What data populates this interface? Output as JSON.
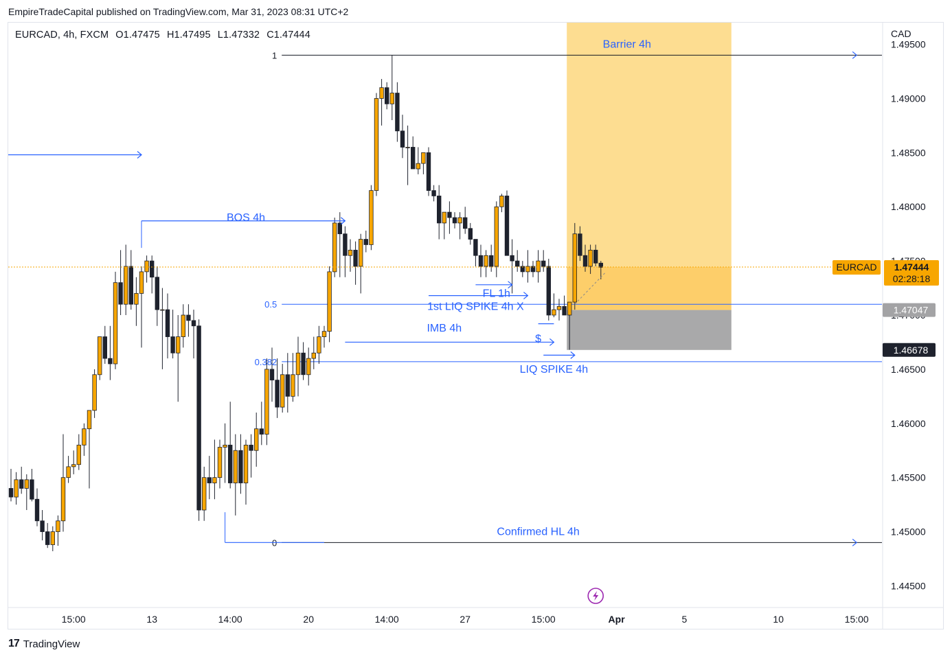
{
  "header": {
    "published": "EmpireTradeCapital published on TradingView.com, Mar 31, 2023 08:31 UTC+2"
  },
  "legend": {
    "symbol": "EURCAD, 4h, FXCM",
    "open": "O1.47475",
    "high": "H1.47495",
    "low": "L1.47332",
    "close": "C1.47444"
  },
  "footer": {
    "brand": "TradingView",
    "logo": "17"
  },
  "colors": {
    "up": "#f7a600",
    "down": "#1e222d",
    "blue": "#2962ff",
    "zone_orange": "#fdd77e",
    "zone_gray": "#a9a9aa",
    "label_orange": "#f7a600"
  },
  "chart_data": {
    "type": "candlestick",
    "currency": "CAD",
    "ylim": [
      1.443,
      1.497
    ],
    "y_ticks": [
      "1.49500",
      "1.49000",
      "1.48500",
      "1.48000",
      "1.47500",
      "1.47000",
      "1.46500",
      "1.46000",
      "1.45500",
      "1.45000",
      "1.44500"
    ],
    "x_ticks": [
      {
        "label": "15:00",
        "bar": 12,
        "bold": false
      },
      {
        "label": "13",
        "bar": 27,
        "bold": false
      },
      {
        "label": "14:00",
        "bar": 42,
        "bold": false
      },
      {
        "label": "20",
        "bar": 57,
        "bold": false
      },
      {
        "label": "14:00",
        "bar": 72,
        "bold": false
      },
      {
        "label": "27",
        "bar": 87,
        "bold": false
      },
      {
        "label": "15:00",
        "bar": 102,
        "bold": false
      },
      {
        "label": "Apr",
        "bar": 116,
        "bold": true
      },
      {
        "label": "5",
        "bar": 129,
        "bold": false
      },
      {
        "label": "10",
        "bar": 147,
        "bold": false
      },
      {
        "label": "15:00",
        "bar": 162,
        "bold": false
      }
    ],
    "candles": [
      [
        1.454,
        1.4558,
        1.4528,
        1.4532
      ],
      [
        1.4532,
        1.4555,
        1.4525,
        1.4548
      ],
      [
        1.4548,
        1.456,
        1.4535,
        1.454
      ],
      [
        1.454,
        1.4553,
        1.452,
        1.4548
      ],
      [
        1.4548,
        1.4558,
        1.4528,
        1.453
      ],
      [
        1.453,
        1.454,
        1.4505,
        1.451
      ],
      [
        1.451,
        1.452,
        1.4492,
        1.45
      ],
      [
        1.45,
        1.4508,
        1.4485,
        1.4488
      ],
      [
        1.4488,
        1.4505,
        1.4482,
        1.45
      ],
      [
        1.45,
        1.4515,
        1.4487,
        1.451
      ],
      [
        1.451,
        1.459,
        1.45,
        1.455
      ],
      [
        1.455,
        1.457,
        1.4545,
        1.456
      ],
      [
        1.456,
        1.4575,
        1.4553,
        1.4562
      ],
      [
        1.4562,
        1.459,
        1.4557,
        1.458
      ],
      [
        1.458,
        1.46,
        1.457,
        1.4595
      ],
      [
        1.4595,
        1.461,
        1.454,
        1.4612
      ],
      [
        1.4612,
        1.465,
        1.4605,
        1.4645
      ],
      [
        1.4645,
        1.468,
        1.464,
        1.468
      ],
      [
        1.468,
        1.469,
        1.4655,
        1.466
      ],
      [
        1.466,
        1.469,
        1.464,
        1.4655
      ],
      [
        1.4655,
        1.474,
        1.465,
        1.473
      ],
      [
        1.473,
        1.476,
        1.47,
        1.471
      ],
      [
        1.471,
        1.4765,
        1.47,
        1.4745
      ],
      [
        1.4745,
        1.476,
        1.4705,
        1.471
      ],
      [
        1.471,
        1.4735,
        1.469,
        1.472
      ],
      [
        1.472,
        1.4745,
        1.467,
        1.474
      ],
      [
        1.474,
        1.4755,
        1.473,
        1.475
      ],
      [
        1.475,
        1.4755,
        1.472,
        1.4735
      ],
      [
        1.4735,
        1.4745,
        1.469,
        1.4705
      ],
      [
        1.4705,
        1.4725,
        1.465,
        1.4705
      ],
      [
        1.4705,
        1.472,
        1.466,
        1.468
      ],
      [
        1.468,
        1.4705,
        1.466,
        1.4665
      ],
      [
        1.4665,
        1.47,
        1.462,
        1.468
      ],
      [
        1.468,
        1.471,
        1.467,
        1.47
      ],
      [
        1.47,
        1.471,
        1.468,
        1.4695
      ],
      [
        1.4695,
        1.4705,
        1.466,
        1.469
      ],
      [
        1.469,
        1.4696,
        1.451,
        1.452
      ],
      [
        1.452,
        1.456,
        1.451,
        1.455
      ],
      [
        1.455,
        1.457,
        1.453,
        1.4545
      ],
      [
        1.4545,
        1.4585,
        1.453,
        1.455
      ],
      [
        1.455,
        1.4585,
        1.454,
        1.4578
      ],
      [
        1.4578,
        1.46,
        1.4545,
        1.458
      ],
      [
        1.458,
        1.462,
        1.454,
        1.4545
      ],
      [
        1.4545,
        1.459,
        1.4515,
        1.4575
      ],
      [
        1.4575,
        1.459,
        1.4535,
        1.4545
      ],
      [
        1.4545,
        1.4585,
        1.4525,
        1.458
      ],
      [
        1.458,
        1.459,
        1.455,
        1.4575
      ],
      [
        1.4575,
        1.461,
        1.456,
        1.4595
      ],
      [
        1.4595,
        1.462,
        1.458,
        1.459
      ],
      [
        1.459,
        1.466,
        1.458,
        1.465
      ],
      [
        1.465,
        1.467,
        1.462,
        1.464
      ],
      [
        1.464,
        1.466,
        1.4605,
        1.4615
      ],
      [
        1.4615,
        1.4655,
        1.461,
        1.4645
      ],
      [
        1.4645,
        1.4665,
        1.461,
        1.4625
      ],
      [
        1.4625,
        1.4665,
        1.462,
        1.4645
      ],
      [
        1.4645,
        1.468,
        1.4625,
        1.4665
      ],
      [
        1.4665,
        1.4675,
        1.464,
        1.4645
      ],
      [
        1.4645,
        1.467,
        1.4635,
        1.466
      ],
      [
        1.466,
        1.468,
        1.465,
        1.4665
      ],
      [
        1.4665,
        1.469,
        1.4655,
        1.468
      ],
      [
        1.468,
        1.469,
        1.467,
        1.4685
      ],
      [
        1.4685,
        1.4745,
        1.4675,
        1.474
      ],
      [
        1.474,
        1.479,
        1.4735,
        1.4785
      ],
      [
        1.4785,
        1.4795,
        1.4735,
        1.4775
      ],
      [
        1.4775,
        1.4782,
        1.4735,
        1.4755
      ],
      [
        1.4755,
        1.477,
        1.474,
        1.476
      ],
      [
        1.476,
        1.4768,
        1.4728,
        1.4745
      ],
      [
        1.4745,
        1.4775,
        1.472,
        1.477
      ],
      [
        1.477,
        1.4778,
        1.4758,
        1.4765
      ],
      [
        1.4765,
        1.482,
        1.476,
        1.4815
      ],
      [
        1.4815,
        1.4905,
        1.481,
        1.49
      ],
      [
        1.49,
        1.4918,
        1.4875,
        1.491
      ],
      [
        1.491,
        1.4915,
        1.489,
        1.4895
      ],
      [
        1.4895,
        1.494,
        1.488,
        1.4905
      ],
      [
        1.4905,
        1.4915,
        1.486,
        1.487
      ],
      [
        1.487,
        1.4885,
        1.4845,
        1.4855
      ],
      [
        1.4855,
        1.4875,
        1.482,
        1.4855
      ],
      [
        1.4855,
        1.4865,
        1.4835,
        1.4835
      ],
      [
        1.4835,
        1.4855,
        1.483,
        1.484
      ],
      [
        1.484,
        1.485,
        1.483,
        1.485
      ],
      [
        1.485,
        1.4855,
        1.481,
        1.4815
      ],
      [
        1.4815,
        1.482,
        1.4805,
        1.481
      ],
      [
        1.481,
        1.482,
        1.477,
        1.4785
      ],
      [
        1.4785,
        1.479,
        1.477,
        1.4795
      ],
      [
        1.4795,
        1.4805,
        1.4775,
        1.479
      ],
      [
        1.479,
        1.4795,
        1.478,
        1.4785
      ],
      [
        1.4785,
        1.4795,
        1.477,
        1.479
      ],
      [
        1.479,
        1.48,
        1.4775,
        1.478
      ],
      [
        1.478,
        1.4785,
        1.4765,
        1.477
      ],
      [
        1.477,
        1.477,
        1.4745,
        1.4755
      ],
      [
        1.4755,
        1.4765,
        1.4735,
        1.4745
      ],
      [
        1.4745,
        1.476,
        1.4735,
        1.4755
      ],
      [
        1.4755,
        1.4765,
        1.474,
        1.4745
      ],
      [
        1.4745,
        1.4805,
        1.4735,
        1.48
      ],
      [
        1.48,
        1.4812,
        1.4795,
        1.481
      ],
      [
        1.481,
        1.4815,
        1.476,
        1.4755
      ],
      [
        1.4755,
        1.477,
        1.472,
        1.475
      ],
      [
        1.475,
        1.476,
        1.474,
        1.4745
      ],
      [
        1.4745,
        1.475,
        1.4735,
        1.474
      ],
      [
        1.474,
        1.476,
        1.473,
        1.4745
      ],
      [
        1.4745,
        1.475,
        1.4735,
        1.474
      ],
      [
        1.474,
        1.476,
        1.473,
        1.475
      ],
      [
        1.475,
        1.476,
        1.474,
        1.4745
      ],
      [
        1.4745,
        1.4752,
        1.4695,
        1.47
      ],
      [
        1.47,
        1.472,
        1.4698,
        1.4705
      ],
      [
        1.4705,
        1.4715,
        1.4695,
        1.4708
      ],
      [
        1.4708,
        1.4718,
        1.47,
        1.47
      ],
      [
        1.47,
        1.471,
        1.4668,
        1.4712
      ],
      [
        1.4712,
        1.4785,
        1.4705,
        1.4775
      ],
      [
        1.4775,
        1.4782,
        1.475,
        1.4755
      ],
      [
        1.4755,
        1.4765,
        1.474,
        1.4745
      ],
      [
        1.4745,
        1.4765,
        1.4738,
        1.476
      ],
      [
        1.476,
        1.4765,
        1.4745,
        1.4748
      ],
      [
        1.4748,
        1.475,
        1.4733,
        1.4744
      ]
    ],
    "x_start_bar": 0,
    "x_total_bars": 165,
    "price_labels": [
      {
        "label": "1.47444",
        "sub": "02:28:18",
        "tag": "EURCAD",
        "value": 1.47444,
        "style": "orange"
      },
      {
        "label": "1.47047",
        "value": 1.47047,
        "style": "gray"
      },
      {
        "label": "1.46678",
        "value": 1.46678,
        "style": "dark"
      }
    ],
    "levels": [
      {
        "label": "1",
        "value": 1.494,
        "color": "#131722",
        "from_bar": 42,
        "to_bar": 165
      },
      {
        "label": "0.5",
        "value": 1.471,
        "color": "#2962ff",
        "from_bar": 42,
        "to_bar": 165
      },
      {
        "label": "0.382",
        "value": 1.4657,
        "color": "#2962ff",
        "from_bar": 42,
        "to_bar": 165
      },
      {
        "label": "0",
        "value": 1.449,
        "color": "#131722",
        "from_bar": 42,
        "to_bar": 165
      }
    ],
    "annotations": [
      {
        "text": "Barrier 4h",
        "x_bar": 118,
        "y": 1.495
      },
      {
        "text": "BOS 4h",
        "x_bar": 45,
        "y": 1.479
      },
      {
        "text": "FL 1h",
        "x_bar": 93,
        "y": 1.472
      },
      {
        "text": "1st LIQ SPIKE 4h X",
        "x_bar": 89,
        "y": 1.4708
      },
      {
        "text": "IMB 4h",
        "x_bar": 83,
        "y": 1.4688
      },
      {
        "text": "$",
        "x_bar": 101,
        "y": 1.4678
      },
      {
        "text": "LIQ SPIKE 4h",
        "x_bar": 104,
        "y": 1.465
      },
      {
        "text": "Confirmed HL 4h",
        "x_bar": 101,
        "y": 1.45
      }
    ]
  }
}
